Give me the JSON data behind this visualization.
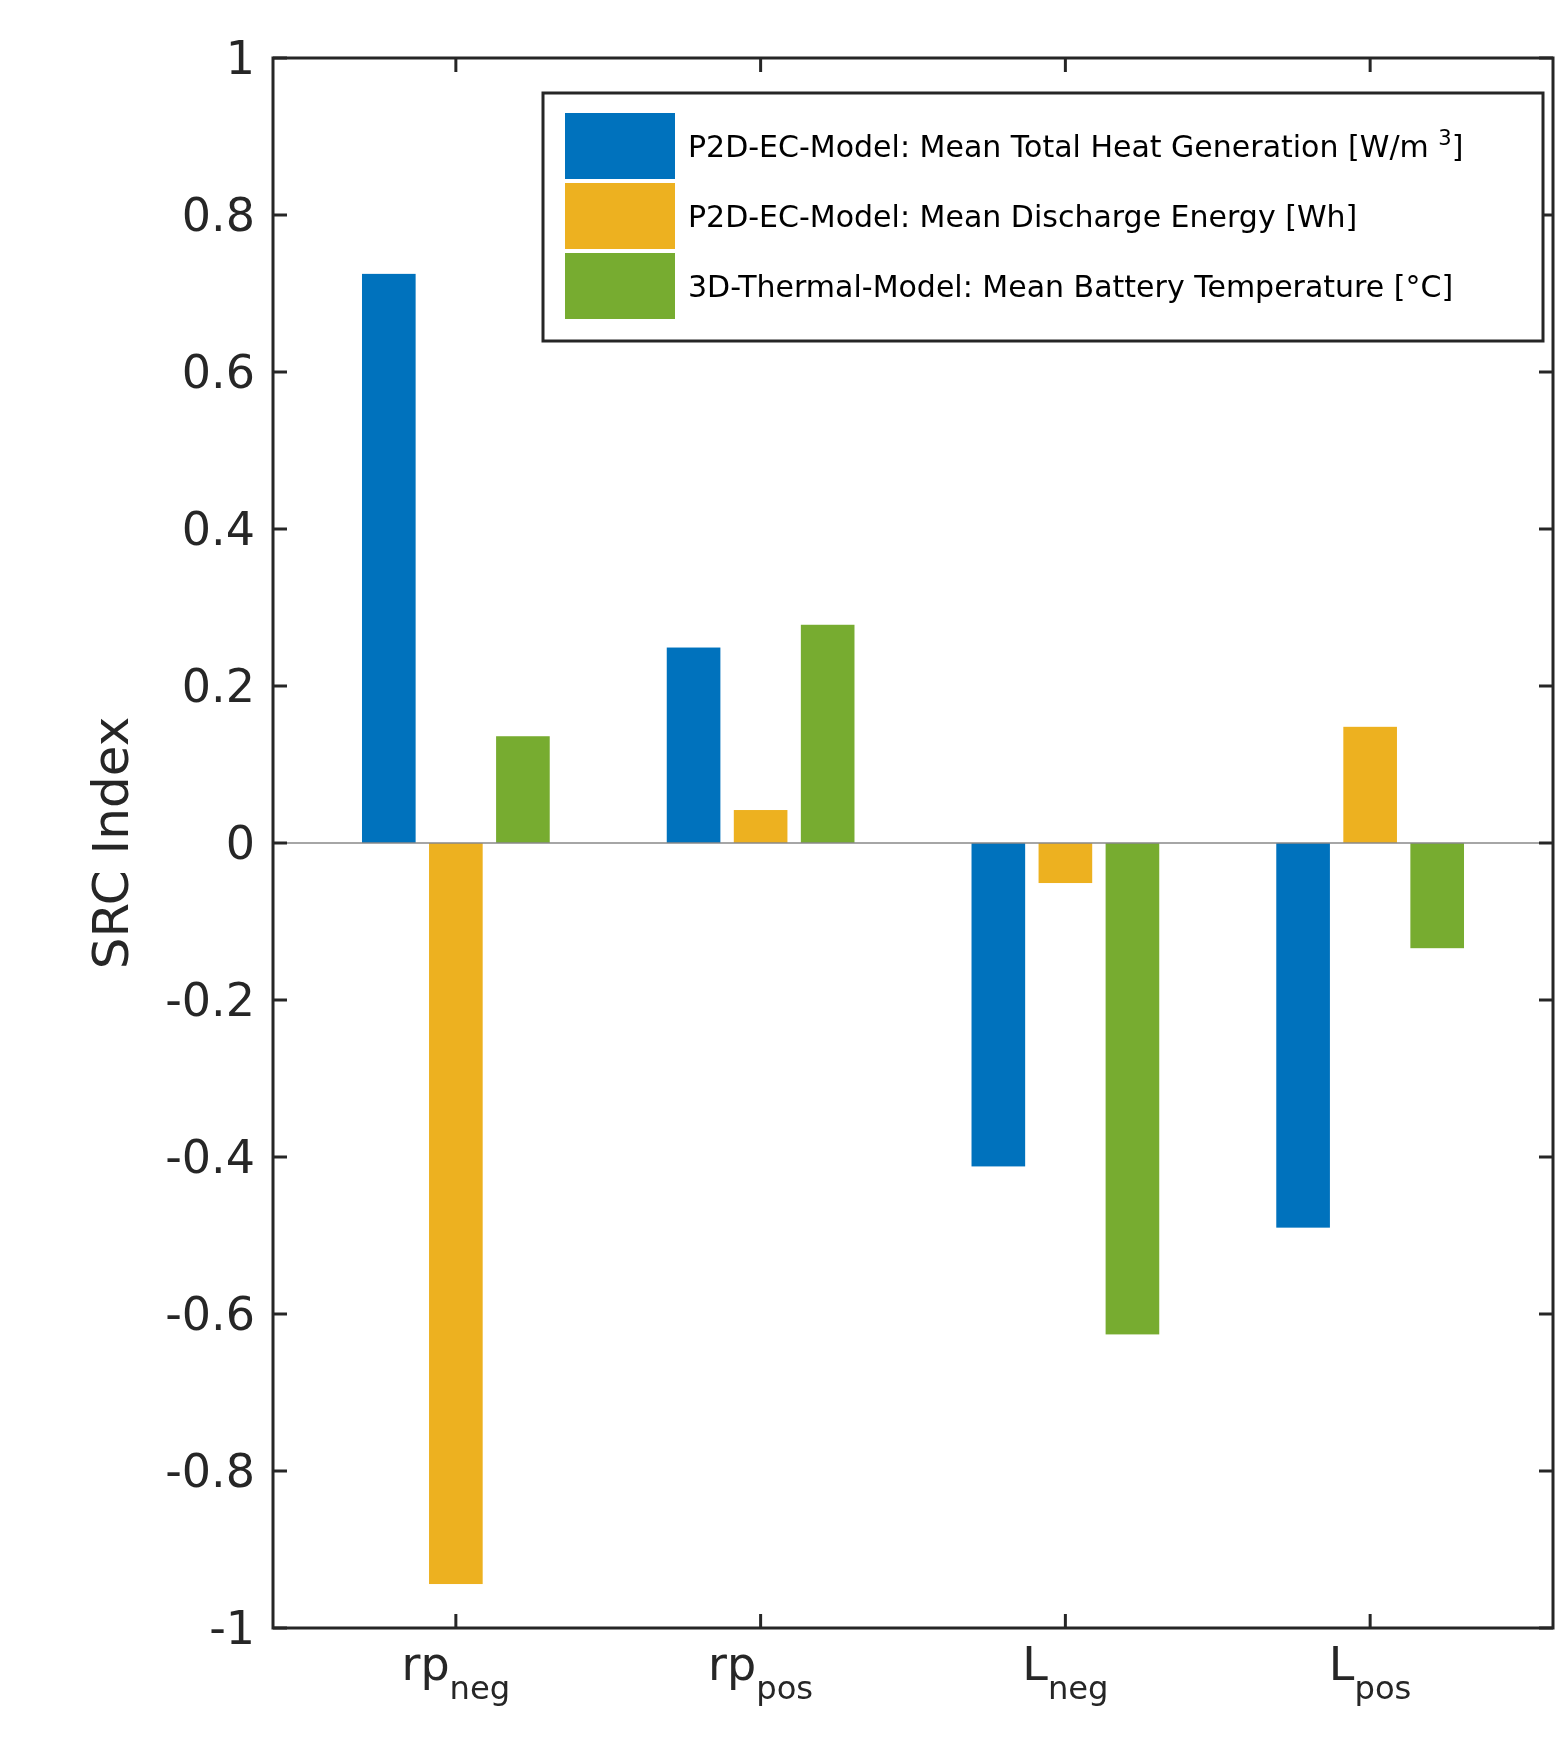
{
  "chart_data": {
    "type": "bar",
    "ylabel": "SRC Index",
    "categories": [
      "rp$_{neg}$",
      "rp$_{pos}$",
      "L$_{neg}$",
      "L$_{pos}$"
    ],
    "series": [
      {
        "name": "P2D-EC-Model: Mean Total Heat Generation [W/m $^{3}$]",
        "color": "#0072bd",
        "values": [
          0.725,
          0.249,
          -0.412,
          -0.49
        ]
      },
      {
        "name": "P2D-EC-Model: Mean Discharge Energy [Wh]",
        "color": "#edb120",
        "values": [
          -0.944,
          0.042,
          -0.051,
          0.148
        ]
      },
      {
        "name": "3D-Thermal-Model: Mean Battery Temperature [°C]",
        "color": "#77ac30",
        "values": [
          0.136,
          0.278,
          -0.626,
          -0.134
        ]
      }
    ],
    "ylim": [
      -1,
      1
    ],
    "yticks": [
      -1,
      -0.8,
      -0.6,
      -0.4,
      -0.2,
      0,
      0.2,
      0.4,
      0.6,
      0.8,
      1
    ],
    "ref_lines": [
      {
        "axis": "y",
        "value": 0,
        "color": "#888888"
      }
    ],
    "grid": false,
    "legend": "top right"
  }
}
